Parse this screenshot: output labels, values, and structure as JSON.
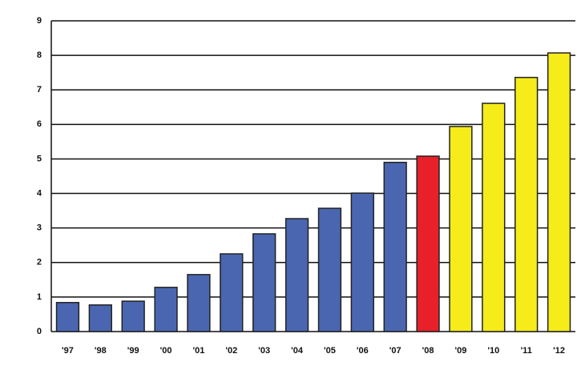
{
  "chart_data": {
    "type": "bar",
    "categories": [
      "'97",
      "'98",
      "'99",
      "'00",
      "'01",
      "'02",
      "'03",
      "'04",
      "'05",
      "'06",
      "'07",
      "'08",
      "'09",
      "'10",
      "'11",
      "'12"
    ],
    "values": [
      0.84,
      0.77,
      0.88,
      1.28,
      1.65,
      2.25,
      2.83,
      3.27,
      3.57,
      4.01,
      4.9,
      5.08,
      5.94,
      6.61,
      7.36,
      8.07
    ],
    "colors": [
      "#4a66b0",
      "#4a66b0",
      "#4a66b0",
      "#4a66b0",
      "#4a66b0",
      "#4a66b0",
      "#4a66b0",
      "#4a66b0",
      "#4a66b0",
      "#4a66b0",
      "#4a66b0",
      "#e8202a",
      "#f5ec1a",
      "#f5ec1a",
      "#f5ec1a",
      "#f5ec1a"
    ],
    "ylim": [
      0,
      9
    ],
    "yticks": [
      0,
      1,
      2,
      3,
      4,
      5,
      6,
      7,
      8,
      9
    ],
    "grid": true
  }
}
